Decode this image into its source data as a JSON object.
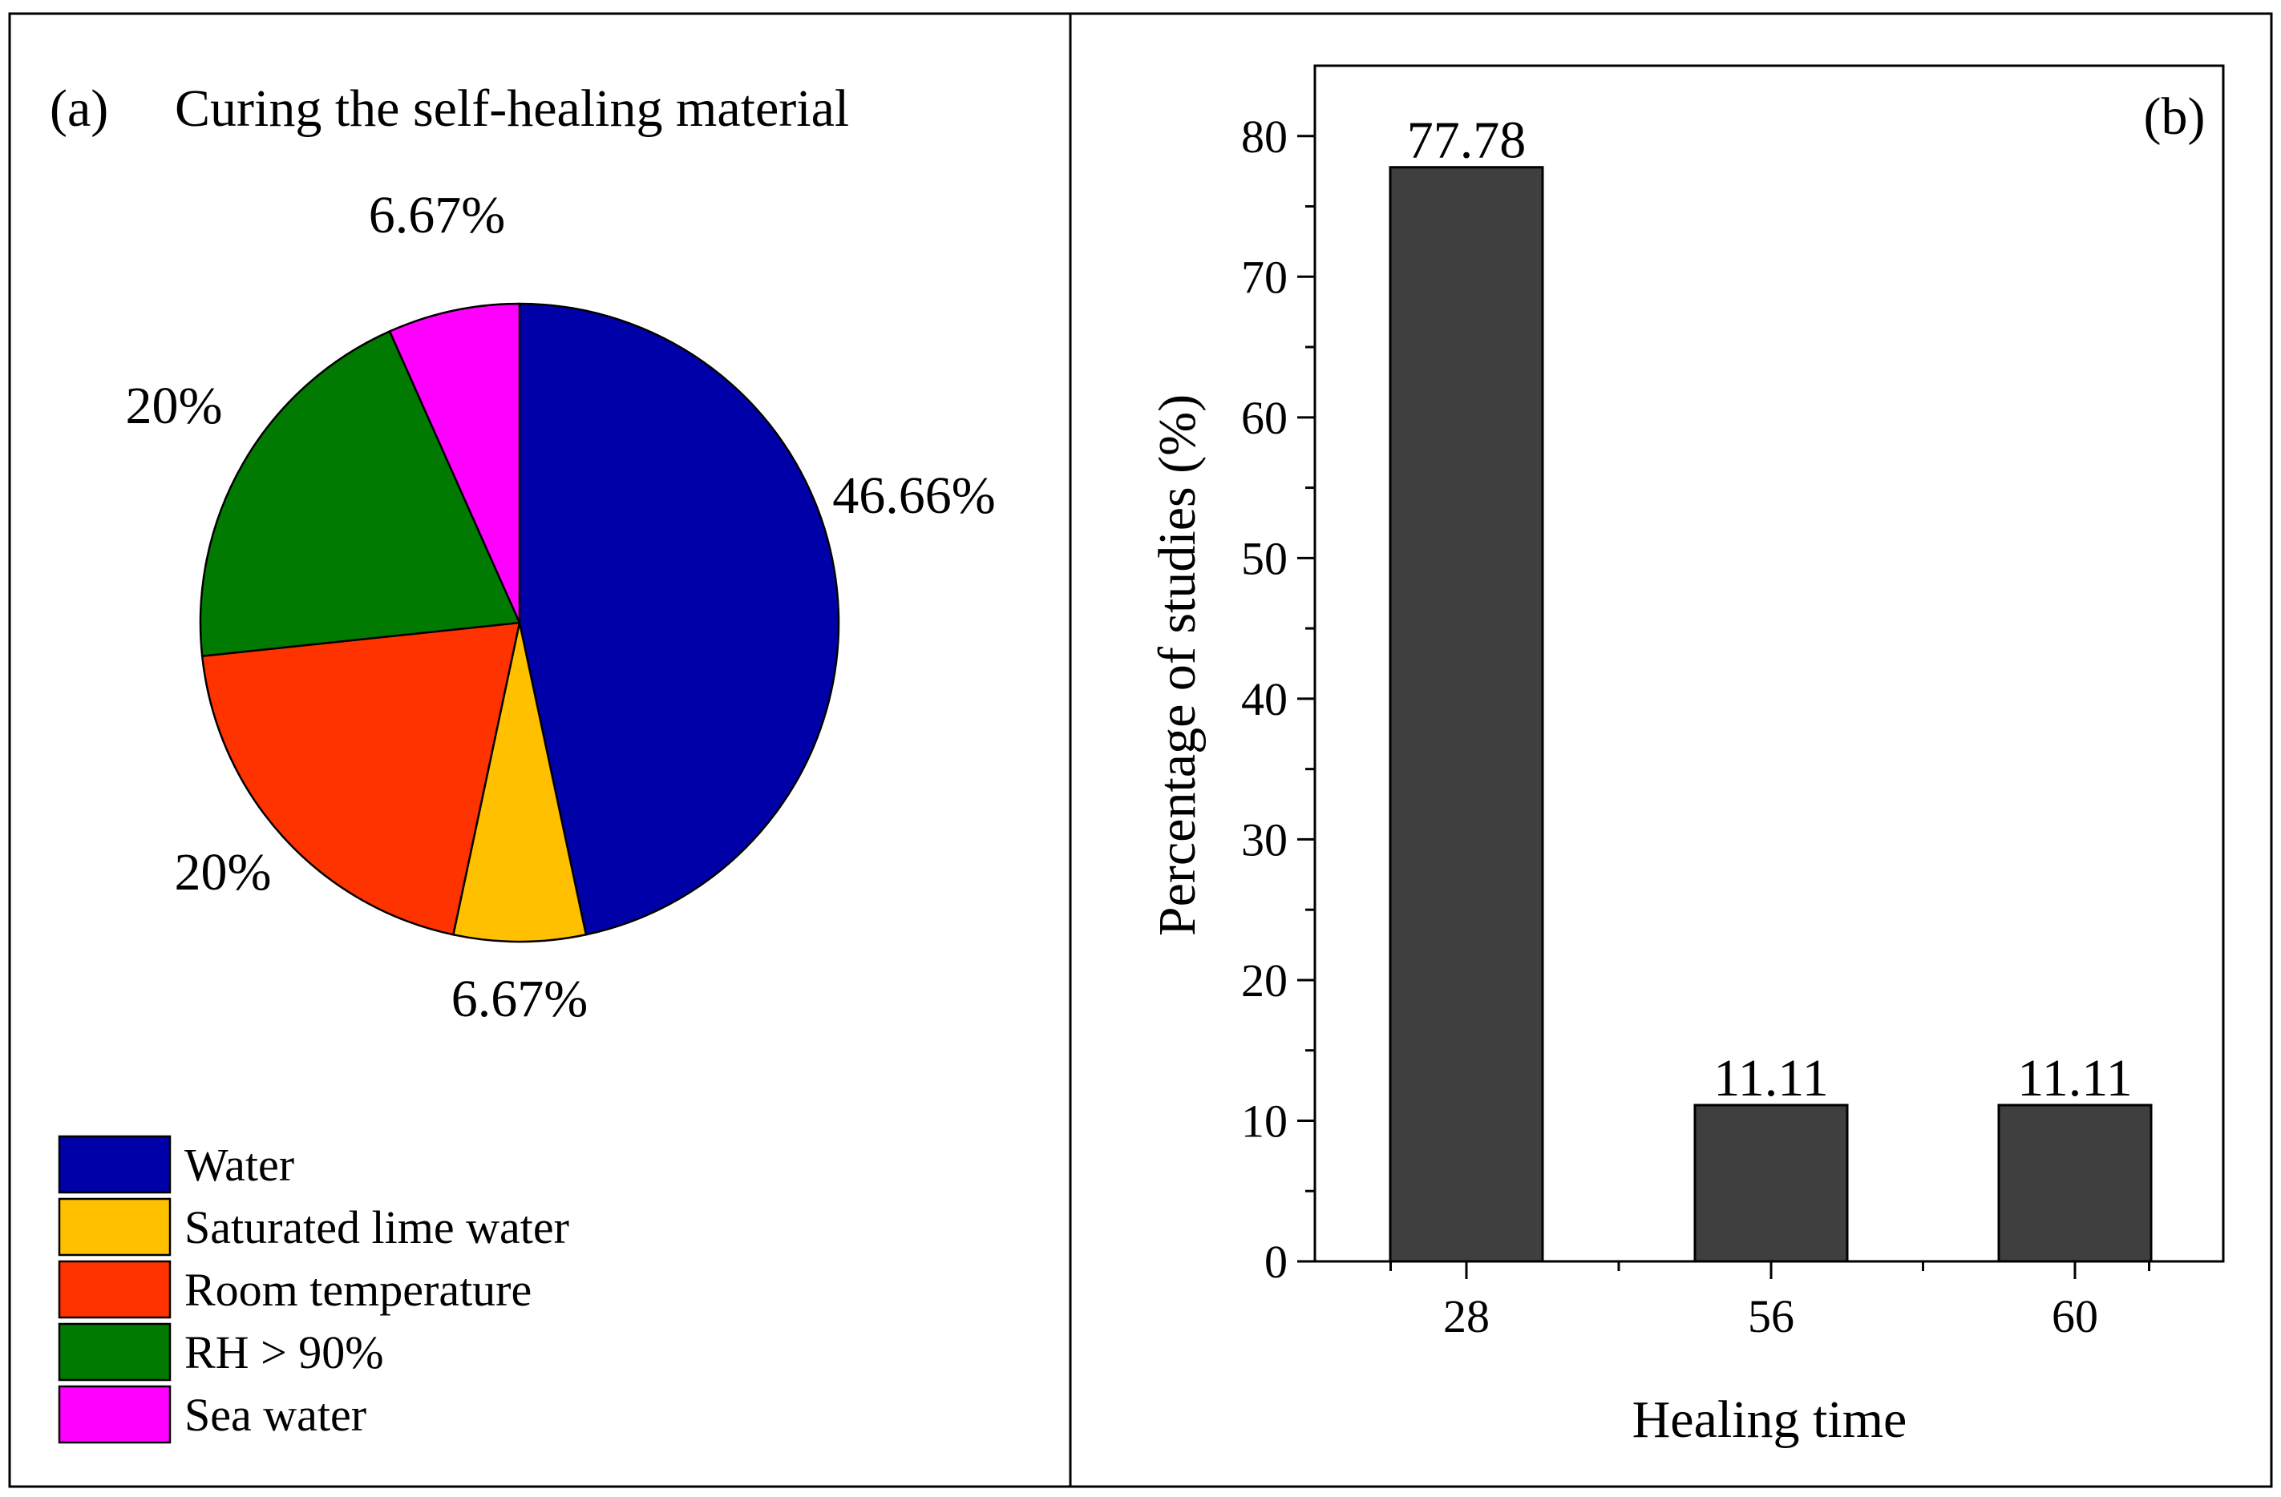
{
  "chart_data": [
    {
      "panel": "(a)",
      "type": "pie",
      "title": "Curing the self-healing material",
      "slices": [
        {
          "label": "Water",
          "value": 46.66,
          "value_label": "46.66%",
          "color": "#0000A8"
        },
        {
          "label": "Saturated lime water",
          "value": 6.67,
          "value_label": "6.67%",
          "color": "#FFC000"
        },
        {
          "label": "Room temperature",
          "value": 20,
          "value_label": "20%",
          "color": "#FF3300"
        },
        {
          "label": "RH > 90%",
          "value": 20,
          "value_label": "20%",
          "color": "#007A00"
        },
        {
          "label": "Sea water",
          "value": 6.67,
          "value_label": "6.67%",
          "color": "#FF00FF"
        }
      ],
      "legend_position": "bottom-left"
    },
    {
      "panel": "(b)",
      "type": "bar",
      "categories": [
        "28",
        "56",
        "60"
      ],
      "values": [
        77.78,
        11.11,
        11.11
      ],
      "value_labels": [
        "77.78",
        "11.11",
        "11.11"
      ],
      "bar_color": "#3F3F3F",
      "xlabel": "Healing time",
      "ylabel": "Percentage of studies (%)",
      "ylim": [
        0,
        85
      ],
      "yticks": [
        "0",
        "10",
        "20",
        "30",
        "40",
        "50",
        "60",
        "70",
        "80"
      ],
      "grid": false
    }
  ]
}
